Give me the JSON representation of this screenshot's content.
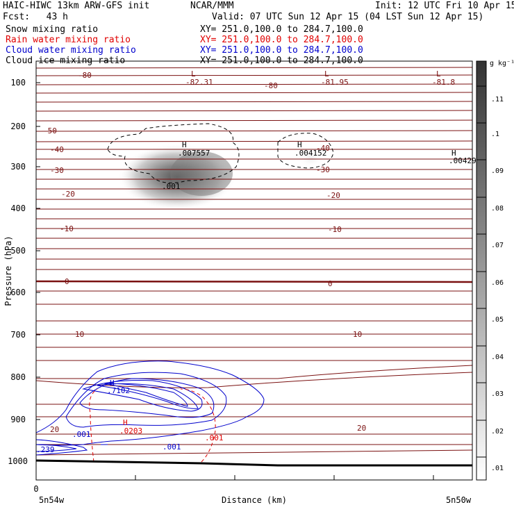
{
  "header": {
    "model": "HAIC-HIWC 13km ARW-GFS init",
    "org": "NCAR/MMM",
    "init": "Init: 12 UTC Fri 10 Apr 15",
    "fcst": "Fcst:   43 h",
    "valid": "Valid: 07 UTC Sun 12 Apr 15 (04 LST Sun 12 Apr 15)"
  },
  "fields": [
    {
      "name": "Snow mixing ratio",
      "xy": "XY= 251.0,100.0 to 284.7,100.0",
      "color": "#000000"
    },
    {
      "name": "Rain water mixing ratio",
      "xy": "XY= 251.0,100.0 to 284.7,100.0",
      "color": "#e00000"
    },
    {
      "name": "Cloud water mixing ratio",
      "xy": "XY= 251.0,100.0 to 284.7,100.0",
      "color": "#0000cc"
    },
    {
      "name": "Cloud ice mixing ratio",
      "xy": "XY= 251.0,100.0 to 284.7,100.0",
      "color": "#000000"
    }
  ],
  "colorbar": {
    "unit": "g kg⁻¹",
    "ticks": [
      ".11",
      ".1",
      ".09",
      ".08",
      ".07",
      ".06",
      ".05",
      ".04",
      ".03",
      ".02",
      ".01"
    ]
  },
  "chart_data": {
    "type": "heatmap",
    "title": "",
    "xlabel": "Distance (km)",
    "ylabel": "Pressure (hPa)",
    "x_ticks": [
      "0"
    ],
    "x_end_labels": {
      "left": "5n54w",
      "right": "5n50w"
    },
    "y_ticks": [
      100,
      200,
      300,
      400,
      500,
      600,
      700,
      800,
      900,
      1000
    ],
    "ylim": [
      1050,
      50
    ],
    "temperature_labels": {
      "left": [
        "-80",
        "-50",
        "-40",
        "-30",
        "-20",
        "-10",
        "0",
        "10",
        "20"
      ],
      "middle": [
        "-80",
        "-40",
        "-30",
        "-20",
        "-10",
        "0",
        "10",
        "20"
      ]
    },
    "extrema": {
      "low_values": [
        "-82.31",
        "-81.95",
        "-81.8"
      ],
      "high_snow": [
        ".007557",
        ".004152",
        ".00429"
      ],
      "high_cloud_water": ".7102",
      "high_rain": ".0203",
      "cloud_water_edge": ".239",
      "contour_labels": [
        ".001",
        ".001",
        ".001",
        ".001"
      ]
    },
    "legend_letters": {
      "low": "L",
      "high": "H"
    }
  }
}
